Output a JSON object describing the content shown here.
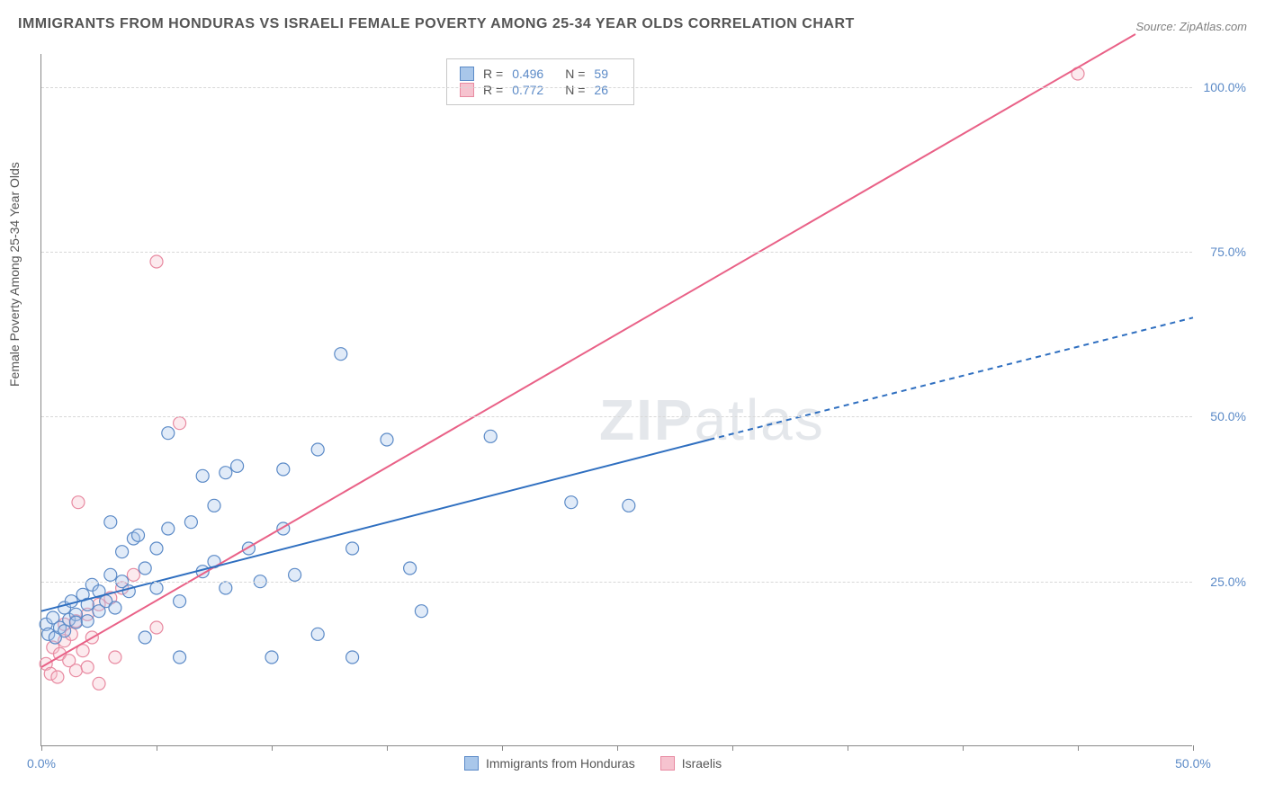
{
  "title": "IMMIGRANTS FROM HONDURAS VS ISRAELI FEMALE POVERTY AMONG 25-34 YEAR OLDS CORRELATION CHART",
  "source": "Source: ZipAtlas.com",
  "ylabel": "Female Poverty Among 25-34 Year Olds",
  "watermark_a": "ZIP",
  "watermark_b": "atlas",
  "chart": {
    "type": "scatter",
    "background_color": "#ffffff",
    "grid_color": "#d8d8d8",
    "axis_color": "#888888",
    "label_color": "#555555",
    "tick_label_color": "#5b8ac7",
    "xlim": [
      0,
      50
    ],
    "ylim": [
      0,
      105
    ],
    "xtick_positions": [
      0,
      5,
      10,
      15,
      20,
      25,
      30,
      35,
      40,
      45,
      50
    ],
    "xtick_labels": {
      "0": "0.0%",
      "50": "50.0%"
    },
    "ytick_positions": [
      25,
      50,
      75,
      100
    ],
    "ytick_labels": {
      "25": "25.0%",
      "50": "50.0%",
      "75": "75.0%",
      "100": "100.0%"
    },
    "marker_radius": 7,
    "marker_fill_opacity": 0.35,
    "marker_stroke_width": 1.2,
    "line_width": 2,
    "dash_pattern": "6,5"
  },
  "legend": {
    "series1_name": "Immigrants from Honduras",
    "series2_name": "Israelis",
    "r_label": "R =",
    "n_label": "N =",
    "series1_r": "0.496",
    "series1_n": "59",
    "series2_r": "0.772",
    "series2_n": "26"
  },
  "series1": {
    "color_fill": "#a9c7ea",
    "color_stroke": "#5b8ac7",
    "line_color": "#2f6fc0",
    "points": [
      [
        0.2,
        18.5
      ],
      [
        0.3,
        17.0
      ],
      [
        0.5,
        19.5
      ],
      [
        0.6,
        16.5
      ],
      [
        0.8,
        18.0
      ],
      [
        1.0,
        21.0
      ],
      [
        1.0,
        17.5
      ],
      [
        1.2,
        19.2
      ],
      [
        1.3,
        22.0
      ],
      [
        1.5,
        20.0
      ],
      [
        1.5,
        18.8
      ],
      [
        1.8,
        23.0
      ],
      [
        2.0,
        21.5
      ],
      [
        2.0,
        19.0
      ],
      [
        2.2,
        24.5
      ],
      [
        2.5,
        20.5
      ],
      [
        2.5,
        23.5
      ],
      [
        2.8,
        22.0
      ],
      [
        3.0,
        26.0
      ],
      [
        3.0,
        34.0
      ],
      [
        3.2,
        21.0
      ],
      [
        3.5,
        25.0
      ],
      [
        3.5,
        29.5
      ],
      [
        3.8,
        23.5
      ],
      [
        4.0,
        31.5
      ],
      [
        4.2,
        32.0
      ],
      [
        4.5,
        27.0
      ],
      [
        4.5,
        16.5
      ],
      [
        5.0,
        24.0
      ],
      [
        5.0,
        30.0
      ],
      [
        5.5,
        33.0
      ],
      [
        5.5,
        47.5
      ],
      [
        6.0,
        22.0
      ],
      [
        6.0,
        13.5
      ],
      [
        6.5,
        34.0
      ],
      [
        7.0,
        26.5
      ],
      [
        7.0,
        41.0
      ],
      [
        7.5,
        28.0
      ],
      [
        7.5,
        36.5
      ],
      [
        8.0,
        24.0
      ],
      [
        8.0,
        41.5
      ],
      [
        8.5,
        42.5
      ],
      [
        9.0,
        30.0
      ],
      [
        9.5,
        25.0
      ],
      [
        10.0,
        13.5
      ],
      [
        10.5,
        42.0
      ],
      [
        10.5,
        33.0
      ],
      [
        11.0,
        26.0
      ],
      [
        12.0,
        17.0
      ],
      [
        12.0,
        45.0
      ],
      [
        13.5,
        30.0
      ],
      [
        13.5,
        13.5
      ],
      [
        15.0,
        46.5
      ],
      [
        16.0,
        27.0
      ],
      [
        16.5,
        20.5
      ],
      [
        19.5,
        47.0
      ],
      [
        23.0,
        37.0
      ],
      [
        25.5,
        36.5
      ],
      [
        13.0,
        59.5
      ]
    ],
    "trend_start": [
      0,
      20.5
    ],
    "trend_solid_end": [
      29,
      46.5
    ],
    "trend_dash_end": [
      50,
      65.0
    ]
  },
  "series2": {
    "color_fill": "#f6c3cf",
    "color_stroke": "#e88aa1",
    "line_color": "#e96187",
    "points": [
      [
        0.2,
        12.5
      ],
      [
        0.4,
        11.0
      ],
      [
        0.5,
        15.0
      ],
      [
        0.7,
        10.5
      ],
      [
        0.8,
        14.0
      ],
      [
        1.0,
        16.0
      ],
      [
        1.0,
        18.5
      ],
      [
        1.2,
        13.0
      ],
      [
        1.3,
        17.0
      ],
      [
        1.5,
        11.5
      ],
      [
        1.5,
        19.0
      ],
      [
        1.8,
        14.5
      ],
      [
        2.0,
        12.0
      ],
      [
        2.0,
        20.0
      ],
      [
        2.2,
        16.5
      ],
      [
        2.5,
        21.5
      ],
      [
        2.5,
        9.5
      ],
      [
        1.6,
        37.0
      ],
      [
        3.0,
        22.5
      ],
      [
        3.2,
        13.5
      ],
      [
        3.5,
        24.0
      ],
      [
        4.0,
        26.0
      ],
      [
        5.0,
        18.0
      ],
      [
        5.0,
        73.5
      ],
      [
        6.0,
        49.0
      ],
      [
        45.0,
        102.0
      ]
    ],
    "trend_start": [
      0,
      12.0
    ],
    "trend_end": [
      47.5,
      108.0
    ]
  }
}
